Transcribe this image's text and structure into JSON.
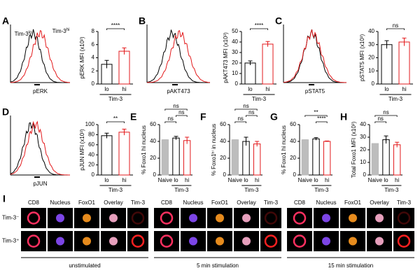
{
  "chart_data": [
    {
      "type": "bar",
      "ylabel": "pERK MFI (x10³)",
      "categories": [
        "lo",
        "hi"
      ],
      "group_label": "Tim-3",
      "values": [
        3.0,
        5.0
      ],
      "errors": [
        0.6,
        0.5
      ],
      "colors": [
        "#000000",
        "#e31a1c"
      ],
      "fills": [
        "#ffffff",
        "#ffffff"
      ],
      "ylim": [
        0,
        8
      ],
      "yticks": [
        0,
        2,
        4,
        6,
        8
      ],
      "significance": [
        {
          "label": "****",
          "between": [
            0,
            1
          ]
        }
      ]
    },
    {
      "type": "bar",
      "ylabel": "pAKT473 MFI (x10³)",
      "categories": [
        "lo",
        "hi"
      ],
      "group_label": "Tim-3",
      "values": [
        20,
        38
      ],
      "errors": [
        2,
        2.5
      ],
      "colors": [
        "#000000",
        "#e31a1c"
      ],
      "fills": [
        "#ffffff",
        "#ffffff"
      ],
      "ylim": [
        0,
        50
      ],
      "yticks": [
        0,
        10,
        20,
        30,
        40,
        50
      ],
      "significance": [
        {
          "label": "****",
          "between": [
            0,
            1
          ]
        }
      ]
    },
    {
      "type": "bar",
      "ylabel": "pSTAT5 MFI (x10³)",
      "categories": [
        "lo",
        "hi"
      ],
      "group_label": "Tim-3",
      "values": [
        30,
        32
      ],
      "errors": [
        3,
        3
      ],
      "colors": [
        "#000000",
        "#e31a1c"
      ],
      "fills": [
        "#ffffff",
        "#ffffff"
      ],
      "ylim": [
        0,
        40
      ],
      "yticks": [
        0,
        10,
        20,
        30,
        40
      ],
      "significance": [
        {
          "label": "ns",
          "between": [
            0,
            1
          ]
        }
      ]
    },
    {
      "type": "bar",
      "ylabel": "pJUN MFI (x10³)",
      "categories": [
        "lo",
        "hi"
      ],
      "group_label": "Tim-3",
      "values": [
        78,
        85
      ],
      "errors": [
        5,
        6
      ],
      "colors": [
        "#000000",
        "#e31a1c"
      ],
      "fills": [
        "#ffffff",
        "#ffffff"
      ],
      "ylim": [
        0,
        100
      ],
      "yticks": [
        0,
        20,
        40,
        60,
        80,
        100
      ],
      "significance": [
        {
          "label": "**",
          "between": [
            0,
            1
          ]
        }
      ]
    },
    {
      "type": "bar",
      "panel": "E",
      "ylabel": "% Foxo1 hi nucleus",
      "categories": [
        "Naive",
        "lo",
        "hi"
      ],
      "group_label": "Tim-3",
      "values": [
        42,
        44,
        41
      ],
      "errors": [
        0,
        2,
        4
      ],
      "colors": [
        "#bdbdbd",
        "#000000",
        "#e31a1c"
      ],
      "fills": [
        "#bdbdbd",
        "#ffffff",
        "#ffffff"
      ],
      "ylim": [
        0,
        60
      ],
      "yticks": [
        0,
        20,
        40,
        60
      ],
      "significance": [
        {
          "label": "ns",
          "between": [
            0,
            1
          ]
        },
        {
          "label": "ns",
          "between": [
            1,
            2
          ]
        },
        {
          "label": "ns",
          "between": [
            0,
            2
          ]
        }
      ]
    },
    {
      "type": "bar",
      "panel": "F",
      "ylabel": "% Foxo1ʰⁱ in nucleus",
      "categories": [
        "Naive",
        "lo",
        "hi"
      ],
      "group_label": "Tim-3",
      "values": [
        42,
        40,
        37
      ],
      "errors": [
        0,
        5,
        3
      ],
      "colors": [
        "#bdbdbd",
        "#000000",
        "#e31a1c"
      ],
      "fills": [
        "#bdbdbd",
        "#ffffff",
        "#ffffff"
      ],
      "ylim": [
        0,
        60
      ],
      "yticks": [
        0,
        20,
        40,
        60
      ],
      "significance": [
        {
          "label": "ns",
          "between": [
            0,
            1
          ]
        },
        {
          "label": "ns",
          "between": [
            1,
            2
          ]
        },
        {
          "label": "ns",
          "between": [
            0,
            2
          ]
        }
      ]
    },
    {
      "type": "bar",
      "panel": "G",
      "ylabel": "% Foxo1 hi nucleus",
      "categories": [
        "Naive",
        "lo",
        "hi"
      ],
      "group_label": "Tim-3",
      "values": [
        42,
        43,
        40
      ],
      "errors": [
        0,
        1.5,
        0.5
      ],
      "colors": [
        "#bdbdbd",
        "#000000",
        "#e31a1c"
      ],
      "fills": [
        "#bdbdbd",
        "#ffffff",
        "#ffffff"
      ],
      "ylim": [
        0,
        60
      ],
      "yticks": [
        0,
        20,
        40,
        60
      ],
      "significance": [
        {
          "label": "****",
          "between": [
            1,
            2
          ]
        },
        {
          "label": "**",
          "between": [
            0,
            2
          ]
        }
      ]
    },
    {
      "type": "bar",
      "panel": "H",
      "ylabel": "Total Foxo1 MFI (x10³)",
      "categories": [
        "Naive",
        "lo",
        "hi"
      ],
      "group_label": "Tim-3",
      "values": [
        25,
        28,
        24
      ],
      "errors": [
        0,
        3,
        2
      ],
      "colors": [
        "#bdbdbd",
        "#000000",
        "#e31a1c"
      ],
      "fills": [
        "#bdbdbd",
        "#ffffff",
        "#ffffff"
      ],
      "ylim": [
        0,
        40
      ],
      "yticks": [
        0,
        10,
        20,
        30,
        40
      ],
      "significance": [
        {
          "label": "ns",
          "between": [
            0,
            1
          ]
        },
        {
          "label": "ns",
          "between": [
            0,
            2
          ]
        }
      ]
    }
  ],
  "histograms": [
    {
      "panel": "A",
      "xlabel": "pERK",
      "legend": [
        {
          "name": "Tim-3",
          "sup": "lo"
        },
        {
          "name": "Tim-3",
          "sup": "hi"
        }
      ]
    },
    {
      "panel": "B",
      "xlabel": "pAKT473"
    },
    {
      "panel": "C",
      "xlabel": "pSTAT5"
    },
    {
      "panel": "D",
      "xlabel": "pJUN"
    }
  ],
  "imaging": {
    "panel": "I",
    "columns": [
      "CD8",
      "Nucleus",
      "FoxO1",
      "Overlay",
      "Tim-3"
    ],
    "rows": [
      "Tim-3⁻",
      "Tim-3⁺"
    ],
    "groups": [
      "unstimulated",
      "5 min stimulation",
      "15 min stimulation"
    ]
  }
}
